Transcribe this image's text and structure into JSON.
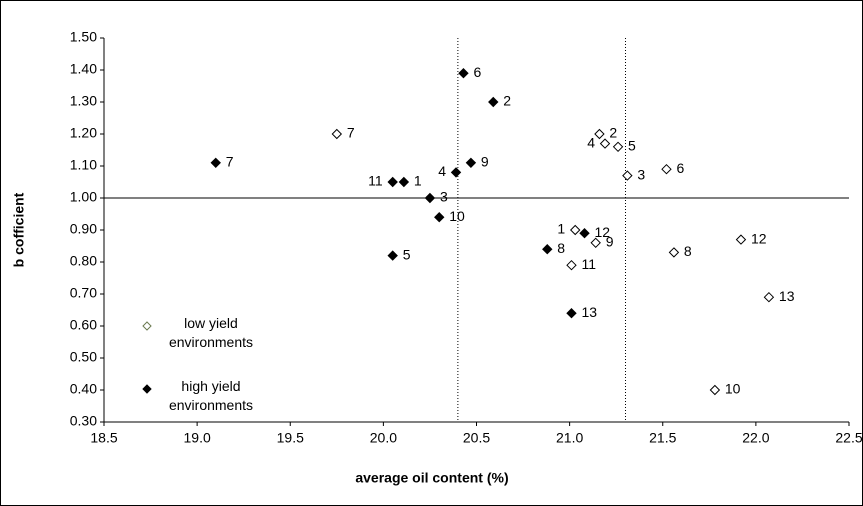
{
  "chart_data": {
    "type": "scatter",
    "x_label": "average oil content (%)",
    "y_label": "b cofficient",
    "xlim": [
      18.5,
      22.5
    ],
    "xticks": [
      18.5,
      {
        "value": 19,
        "label": "19.0"
      },
      19.5,
      {
        "value": 20,
        "label": "20.0"
      },
      20.5,
      {
        "value": 21,
        "label": "21.0"
      },
      21.5,
      {
        "value": 22,
        "label": "22.0"
      },
      22.5
    ],
    "ylim": [
      0.3,
      1.5
    ],
    "yticks": [
      {
        "value": 0.3,
        "label": "0.30"
      },
      {
        "value": 0.4,
        "label": "0.40"
      },
      {
        "value": 0.5,
        "label": "0.50"
      },
      {
        "value": 0.6,
        "label": "0.60"
      },
      {
        "value": 0.7,
        "label": "0.70"
      },
      {
        "value": 0.8,
        "label": "0.80"
      },
      {
        "value": 0.9,
        "label": "0.90"
      },
      {
        "value": 1.0,
        "label": "1.00"
      },
      {
        "value": 1.1,
        "label": "1.10"
      },
      {
        "value": 1.2,
        "label": "1.20"
      },
      {
        "value": 1.3,
        "label": "1.30"
      },
      {
        "value": 1.4,
        "label": "1.40"
      },
      {
        "value": 1.5,
        "label": "1.50"
      }
    ],
    "reference_lines": {
      "y": [
        1.0
      ],
      "x": [
        20.4,
        21.3
      ]
    },
    "grid": false,
    "legend": "lower left",
    "series": [
      {
        "name": "low yield environments",
        "color": "#000000",
        "filled": false,
        "labels": [
          "1",
          "2",
          "3",
          "4",
          "5",
          "6",
          "7",
          "8",
          "9",
          "10",
          "11",
          "12",
          "13"
        ],
        "x": [
          21.03,
          21.16,
          21.31,
          21.19,
          21.26,
          21.52,
          19.75,
          21.56,
          21.14,
          21.78,
          21.01,
          21.92,
          22.07
        ],
        "values": [
          0.9,
          1.2,
          1.07,
          1.17,
          1.16,
          1.09,
          1.2,
          0.83,
          0.86,
          0.4,
          0.79,
          0.87,
          0.69
        ]
      },
      {
        "name": "high yield environments",
        "color": "#000000",
        "filled": true,
        "labels": [
          "1",
          "2",
          "3",
          "4",
          "5",
          "6",
          "7",
          "8",
          "9",
          "10",
          "11",
          "12",
          "13"
        ],
        "x": [
          20.11,
          20.59,
          20.25,
          20.39,
          20.05,
          20.43,
          19.1,
          20.88,
          20.47,
          20.3,
          20.05,
          21.08,
          21.01
        ],
        "values": [
          1.05,
          1.3,
          1.0,
          1.08,
          0.82,
          1.39,
          1.11,
          0.84,
          1.11,
          0.94,
          1.05,
          0.89,
          0.64
        ]
      }
    ]
  }
}
